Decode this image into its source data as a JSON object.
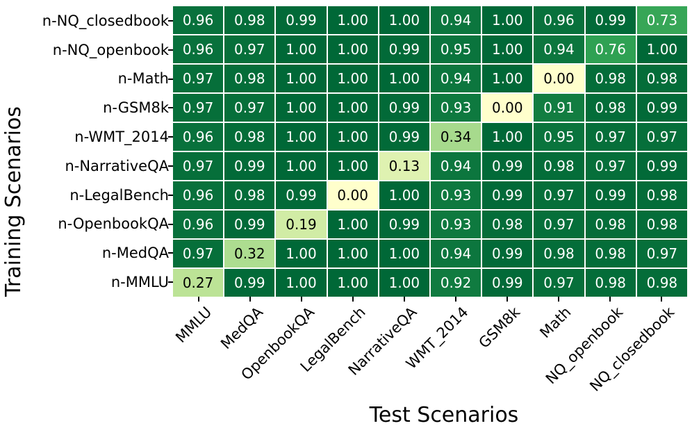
{
  "chart_data": {
    "type": "heatmap",
    "title": "",
    "xlabel": "Test Scenarios",
    "ylabel": "Training Scenarios",
    "x_categories": [
      "MMLU",
      "MedQA",
      "OpenbookQA",
      "LegalBench",
      "NarrativeQA",
      "WMT_2014",
      "GSM8k",
      "Math",
      "NQ_openbook",
      "NQ_closedbook"
    ],
    "y_categories": [
      "n-NQ_closedbook",
      "n-NQ_openbook",
      "n-Math",
      "n-GSM8k",
      "n-WMT_2014",
      "n-NarrativeQA",
      "n-LegalBench",
      "n-OpenbookQA",
      "n-MedQA",
      "n-MMLU"
    ],
    "values": [
      [
        0.96,
        0.98,
        0.99,
        1.0,
        1.0,
        0.94,
        1.0,
        0.96,
        0.99,
        0.73
      ],
      [
        0.96,
        0.97,
        1.0,
        1.0,
        0.99,
        0.95,
        1.0,
        0.94,
        0.76,
        1.0
      ],
      [
        0.97,
        0.98,
        1.0,
        1.0,
        1.0,
        0.94,
        1.0,
        0.0,
        0.98,
        0.98
      ],
      [
        0.97,
        0.97,
        1.0,
        1.0,
        0.99,
        0.93,
        0.0,
        0.91,
        0.98,
        0.99
      ],
      [
        0.96,
        0.98,
        1.0,
        1.0,
        0.99,
        0.34,
        1.0,
        0.95,
        0.97,
        0.97
      ],
      [
        0.97,
        0.99,
        1.0,
        1.0,
        0.13,
        0.94,
        0.99,
        0.98,
        0.97,
        0.99
      ],
      [
        0.96,
        0.98,
        0.99,
        0.0,
        1.0,
        0.93,
        0.99,
        0.97,
        0.99,
        0.98
      ],
      [
        0.96,
        0.99,
        0.19,
        1.0,
        0.99,
        0.93,
        0.98,
        0.97,
        0.98,
        0.98
      ],
      [
        0.97,
        0.32,
        1.0,
        1.0,
        1.0,
        0.94,
        0.99,
        0.98,
        0.98,
        0.97
      ],
      [
        0.27,
        0.99,
        1.0,
        1.0,
        1.0,
        0.92,
        0.99,
        0.97,
        0.98,
        0.98
      ]
    ],
    "value_decimals": 2,
    "vmin": 0,
    "vmax": 1,
    "colormap": {
      "name": "YlGn",
      "positions": [
        0,
        0.25,
        0.5,
        0.75,
        1
      ],
      "colors": [
        "#ffffcc",
        "#c2e699",
        "#78c679",
        "#31a354",
        "#006837"
      ]
    },
    "style": {
      "gridline_color": "#ffffff",
      "tick_color": "#000000",
      "cell_text_light": "#ffffff",
      "cell_text_dark": "#000000",
      "background": "#ffffff"
    },
    "legend": "none",
    "grid": "white cell separators",
    "x_tick_rotation_deg": 45
  }
}
